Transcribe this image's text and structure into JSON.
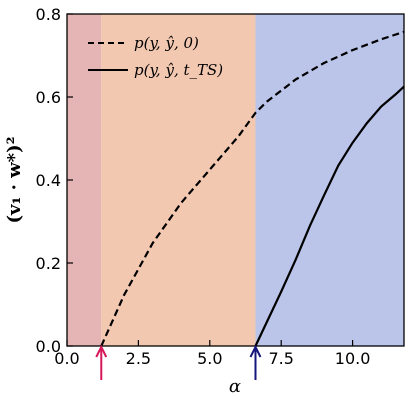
{
  "chart_data": {
    "type": "line",
    "xlabel": "α",
    "ylabel": "(v₁ · w*)²",
    "xlim": [
      0,
      11.8
    ],
    "ylim": [
      0,
      0.8
    ],
    "x_ticks": [
      0.0,
      2.5,
      5.0,
      7.5,
      10.0
    ],
    "x_tick_labels": [
      "0.0",
      "2.5",
      "5.0",
      "7.5",
      "10.0"
    ],
    "y_ticks": [
      0.0,
      0.2,
      0.4,
      0.6,
      0.8
    ],
    "y_tick_labels": [
      "0.0",
      "0.2",
      "0.4",
      "0.6",
      "0.8"
    ],
    "legend_position": "top-left",
    "regions": [
      {
        "x_start": 0,
        "x_end": 1.2,
        "color": "#e5b5b5"
      },
      {
        "x_start": 1.2,
        "x_end": 6.6,
        "color": "#f3c8b1"
      },
      {
        "x_start": 6.6,
        "x_end": 11.8,
        "color": "#bbc5ea"
      }
    ],
    "arrows": [
      {
        "x": 1.2,
        "color": "#d6185a"
      },
      {
        "x": 6.6,
        "color": "#15157d"
      }
    ],
    "series": [
      {
        "name": "p(y, ŷ, 0)",
        "dash": "dashed",
        "color": "#000000",
        "x": [
          1.2,
          2.0,
          3.0,
          4.0,
          5.0,
          6.0,
          6.6,
          7.0,
          8.0,
          9.0,
          10.0,
          11.0,
          11.8
        ],
        "y": [
          0.0,
          0.123,
          0.248,
          0.345,
          0.425,
          0.505,
          0.562,
          0.589,
          0.642,
          0.682,
          0.713,
          0.739,
          0.757
        ]
      },
      {
        "name": "p(y, ŷ, t_TS)",
        "dash": "solid",
        "color": "#000000",
        "x": [
          6.6,
          7.0,
          7.5,
          8.0,
          8.5,
          9.0,
          9.5,
          10.0,
          10.5,
          11.0,
          11.5,
          11.8
        ],
        "y": [
          0.0,
          0.058,
          0.131,
          0.207,
          0.289,
          0.363,
          0.435,
          0.49,
          0.537,
          0.577,
          0.606,
          0.625
        ]
      }
    ]
  }
}
